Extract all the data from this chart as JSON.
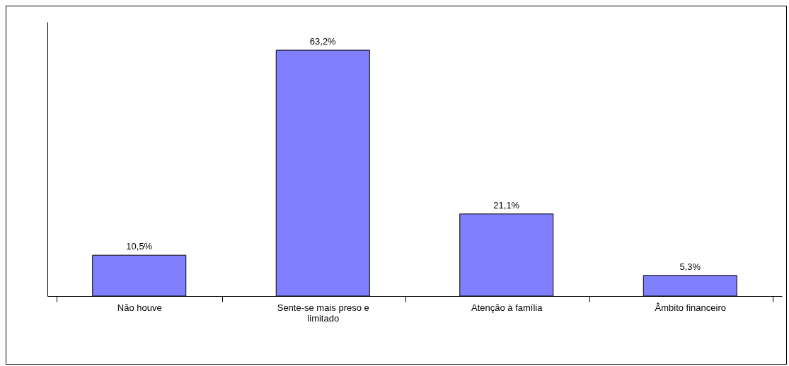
{
  "chart_data": {
    "type": "bar",
    "categories": [
      "Não houve",
      "Sente-se mais preso e limitado",
      "Atenção à família",
      "Âmbito financeiro"
    ],
    "values": [
      10.5,
      63.2,
      21.1,
      5.3
    ],
    "value_labels": [
      "10,5%",
      "63,2%",
      "21,1%",
      "5,3%"
    ],
    "color": "#8080ff",
    "grid": false
  }
}
